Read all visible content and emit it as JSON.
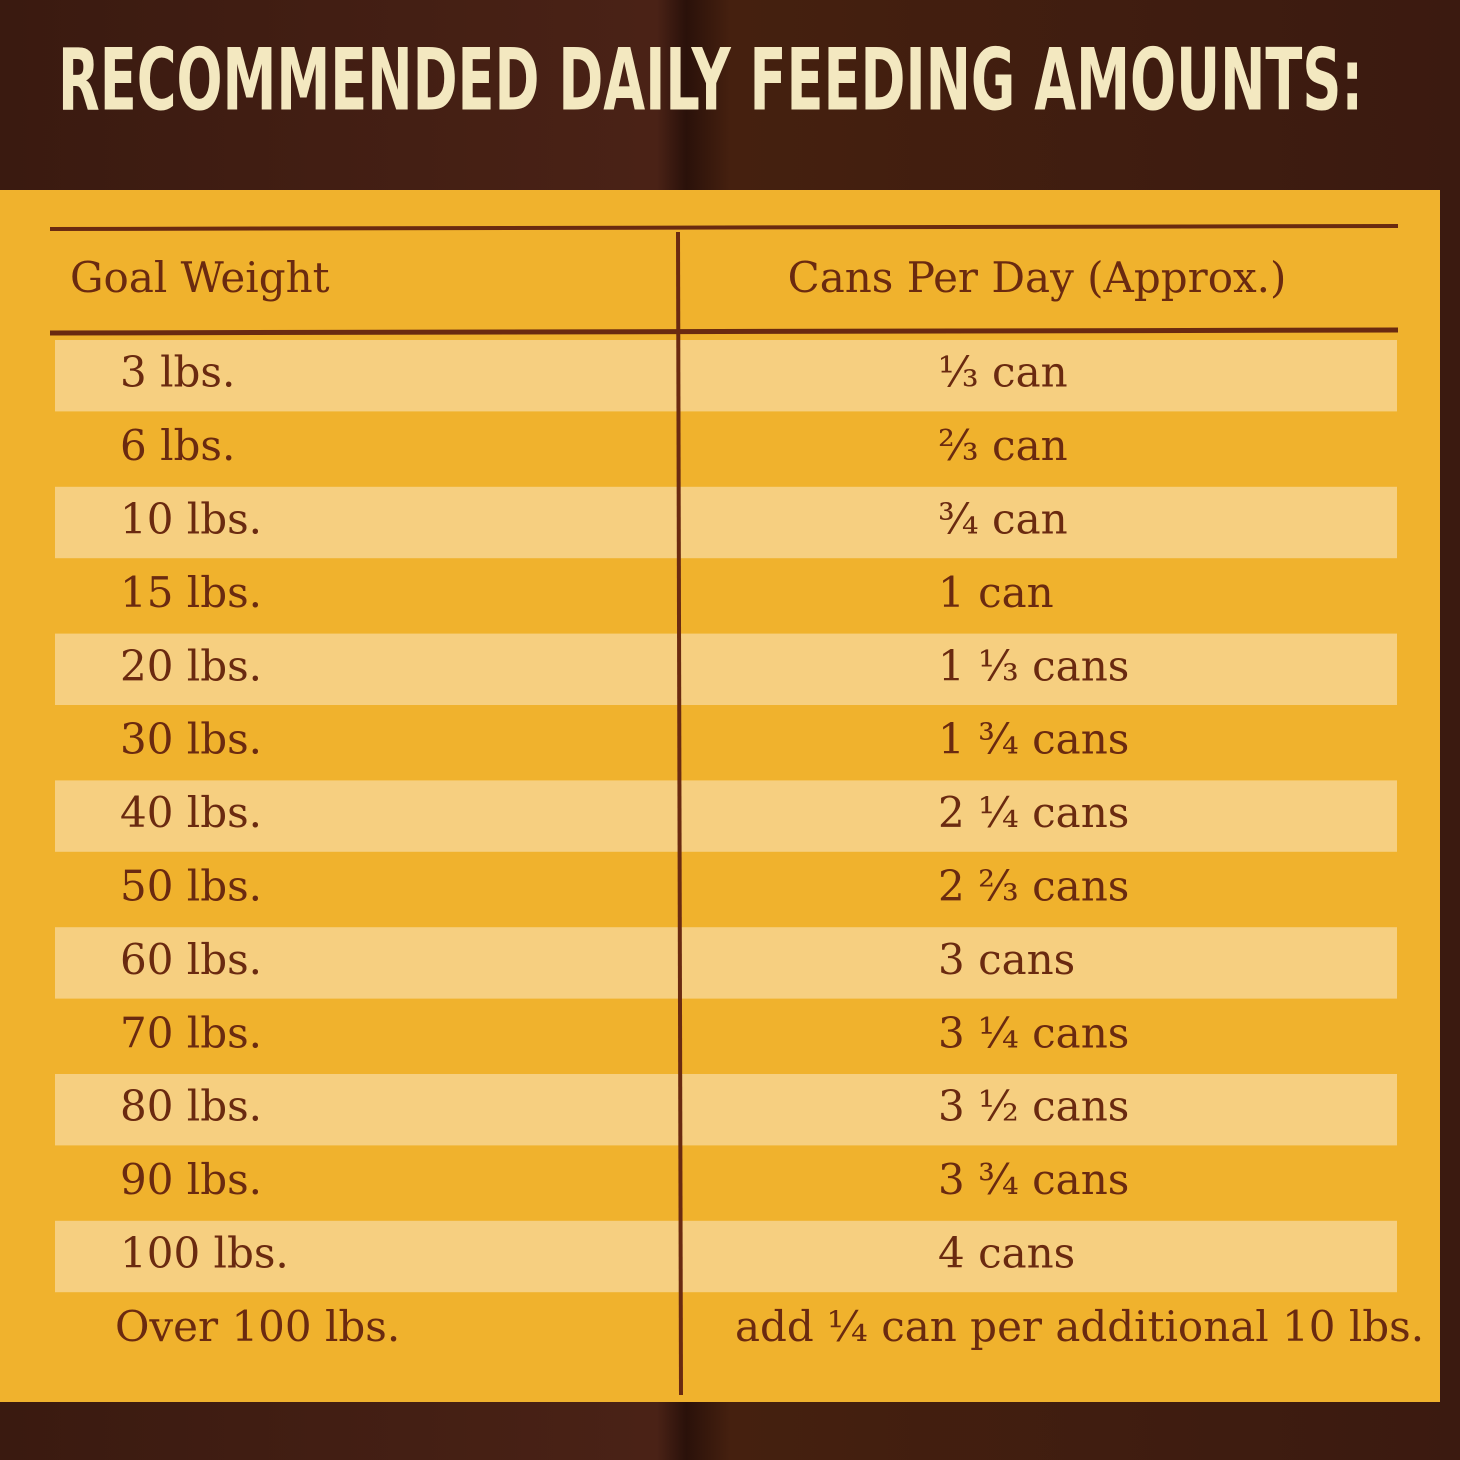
{
  "title": "RECOMMENDED DAILY FEEDING AMOUNTS:",
  "table": {
    "header": [
      "Goal Weight",
      "Cans Per Day (Approx.)"
    ],
    "rows": [
      [
        "3 lbs.",
        "⅓ can"
      ],
      [
        "6 lbs.",
        "⅔ can"
      ],
      [
        "10 lbs.",
        "¾ can"
      ],
      [
        "15 lbs.",
        "1 can"
      ],
      [
        "20 lbs.",
        "1 ⅓ cans"
      ],
      [
        "30 lbs.",
        "1 ¾ cans"
      ],
      [
        "40 lbs.",
        "2 ¼ cans"
      ],
      [
        "50 lbs.",
        "2 ⅔ cans"
      ],
      [
        "60 lbs.",
        "3 cans"
      ],
      [
        "70 lbs.",
        "3 ¼ cans"
      ],
      [
        "80 lbs.",
        "3 ½ cans"
      ],
      [
        "90 lbs.",
        "3 ¾ cans"
      ],
      [
        "100 lbs.",
        "4 cans"
      ],
      [
        "Over 100 lbs.",
        "add ¼ can per additional 10 lbs."
      ]
    ]
  }
}
